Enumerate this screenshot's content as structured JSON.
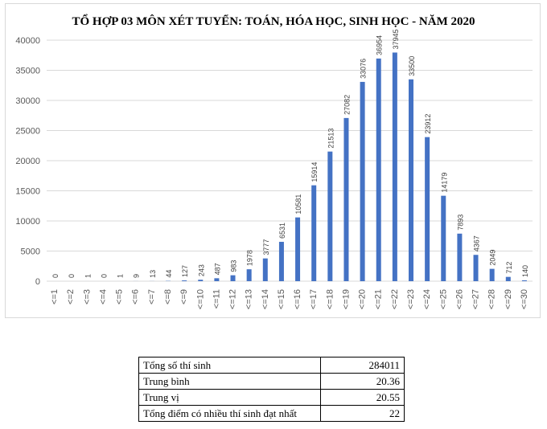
{
  "chart_data": {
    "type": "bar",
    "title": "TỔ HỢP 03 MÔN XÉT TUYỂN: TOÁN, HÓA HỌC, SINH HỌC - NĂM 2020",
    "categories": [
      "<=1",
      "<=2",
      "<=3",
      "<=4",
      "<=5",
      "<=6",
      "<=7",
      "<=8",
      "<=9",
      "<=10",
      "<=11",
      "<=12",
      "<=13",
      "<=14",
      "<=15",
      "<=16",
      "<=17",
      "<=18",
      "<=19",
      "<=20",
      "<=21",
      "<=22",
      "<=23",
      "<=24",
      "<=25",
      "<=26",
      "<=27",
      "<=28",
      "<=29",
      "<=30"
    ],
    "values": [
      0,
      0,
      1,
      0,
      1,
      9,
      13,
      44,
      127,
      243,
      487,
      983,
      1978,
      3777,
      6531,
      10581,
      15914,
      21513,
      27082,
      33076,
      36954,
      37945,
      33500,
      23912,
      14179,
      7893,
      4367,
      2049,
      712,
      140
    ],
    "ylim": [
      0,
      40000
    ],
    "yticks": [
      0,
      5000,
      10000,
      15000,
      20000,
      25000,
      30000,
      35000,
      40000
    ],
    "grid": true,
    "bar_color": "#4472c4"
  },
  "stats": [
    {
      "label": "Tổng số thí sinh",
      "value": "284011"
    },
    {
      "label": "Trung bình",
      "value": "20.36"
    },
    {
      "label": "Trung vị",
      "value": "20.55"
    },
    {
      "label": "Tổng điểm có nhiều thí sinh đạt nhất",
      "value": "22"
    }
  ]
}
